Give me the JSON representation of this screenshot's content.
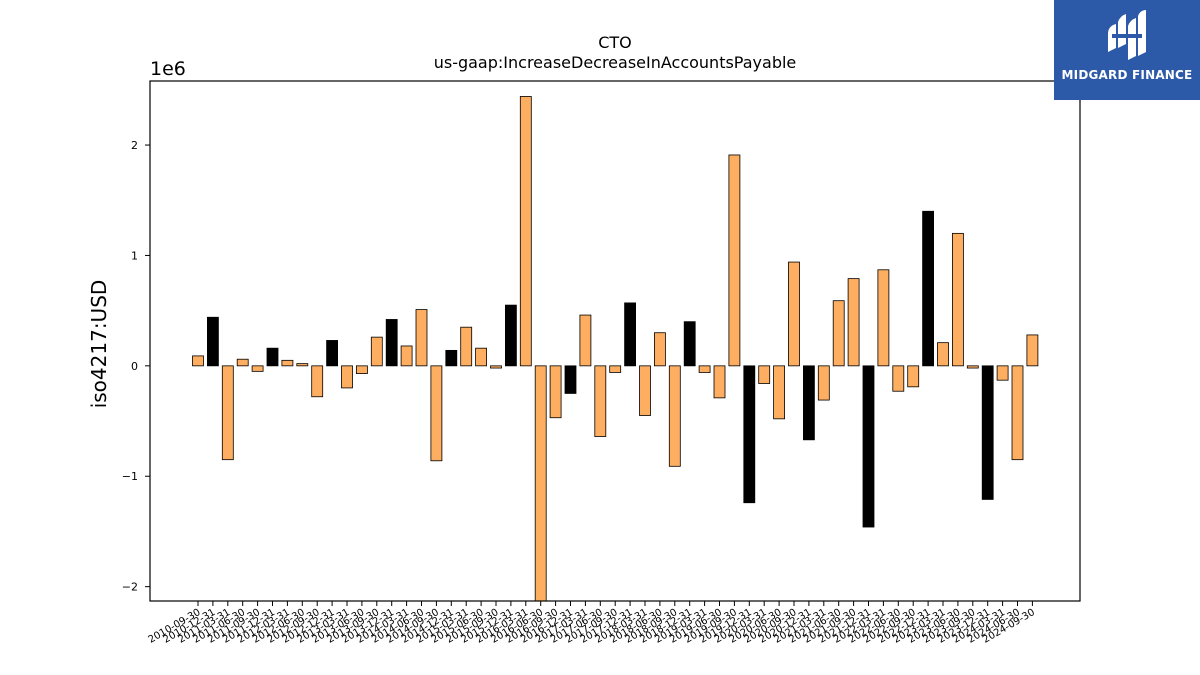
{
  "chart_data": {
    "type": "bar",
    "title": "CTO",
    "subtitle": "us-gaap:IncreaseDecreaseInAccountsPayable",
    "ylabel": "iso4217:USD",
    "xlabel": "",
    "y_scale_label": "1e6",
    "ylim": [
      -2.13,
      2.58
    ],
    "yticks": [
      -2,
      -1,
      0,
      1,
      2
    ],
    "yticklabels": [
      "−2",
      "−1",
      "0",
      "1",
      "2"
    ],
    "grid": false,
    "colors": {
      "default": "#fdae61",
      "highlight": "#000000",
      "edge": "#000000"
    },
    "categories": [
      "2010-09-30",
      "2010-12-31",
      "2011-03-31",
      "2011-06-30",
      "2011-09-30",
      "2011-12-31",
      "2012-03-31",
      "2012-06-30",
      "2012-09-30",
      "2012-12-31",
      "2013-03-31",
      "2013-06-30",
      "2013-09-30",
      "2013-12-31",
      "2014-03-31",
      "2014-06-30",
      "2014-09-30",
      "2014-12-31",
      "2015-03-31",
      "2015-06-30",
      "2015-09-30",
      "2015-12-31",
      "2016-03-31",
      "2016-06-30",
      "2016-09-30",
      "2016-12-31",
      "2017-03-31",
      "2017-06-30",
      "2017-09-30",
      "2017-12-31",
      "2018-03-31",
      "2018-06-30",
      "2018-09-30",
      "2018-12-31",
      "2019-03-31",
      "2019-06-30",
      "2019-09-30",
      "2019-12-31",
      "2020-03-31",
      "2020-06-30",
      "2020-09-30",
      "2020-12-31",
      "2021-03-31",
      "2021-06-30",
      "2021-09-30",
      "2021-12-31",
      "2022-03-31",
      "2022-06-30",
      "2022-09-30",
      "2022-12-31",
      "2023-03-31",
      "2023-06-30",
      "2023-09-30",
      "2023-12-31",
      "2024-03-31",
      "2024-06-30",
      "2024-09-30"
    ],
    "values": [
      0.09,
      0.44,
      -0.85,
      0.06,
      -0.05,
      0.16,
      0.05,
      0.02,
      -0.28,
      0.23,
      -0.2,
      -0.07,
      0.26,
      0.42,
      0.18,
      0.51,
      -0.86,
      0.14,
      0.35,
      0.16,
      -0.02,
      0.55,
      2.44,
      -2.13,
      -0.47,
      -0.25,
      0.46,
      -0.64,
      -0.06,
      0.57,
      -0.45,
      0.3,
      -0.91,
      0.4,
      -0.06,
      -0.29,
      1.91,
      -1.24,
      -0.16,
      -0.48,
      0.94,
      -0.67,
      -0.31,
      0.59,
      0.79,
      -1.46,
      0.87,
      -0.23,
      -0.19,
      1.4,
      0.21,
      1.2,
      -0.02,
      -1.21,
      -0.13,
      -0.85,
      0.28
    ],
    "highlight": [
      false,
      true,
      false,
      false,
      false,
      true,
      false,
      false,
      false,
      true,
      false,
      false,
      false,
      true,
      false,
      false,
      false,
      true,
      false,
      false,
      false,
      true,
      false,
      false,
      false,
      true,
      false,
      false,
      false,
      true,
      false,
      false,
      false,
      true,
      false,
      false,
      false,
      true,
      false,
      false,
      false,
      true,
      false,
      false,
      false,
      true,
      false,
      false,
      false,
      true,
      false,
      false,
      false,
      true,
      false,
      false,
      false
    ]
  },
  "logo": {
    "text": "MIDGARD FINANCE"
  }
}
